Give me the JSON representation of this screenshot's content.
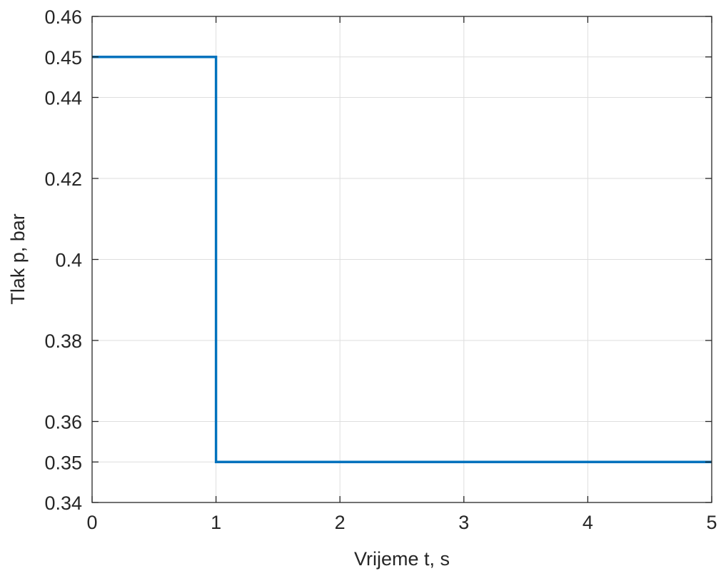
{
  "chart_data": {
    "type": "line",
    "step": true,
    "xlabel": "Vrijeme t, s",
    "ylabel": "Tlak p, bar",
    "xlim": [
      0,
      5
    ],
    "ylim": [
      0.34,
      0.46
    ],
    "grid": true,
    "xticks": [
      0,
      1,
      2,
      3,
      4,
      5
    ],
    "xtick_labels": [
      "0",
      "1",
      "2",
      "3",
      "4",
      "5"
    ],
    "yticks": [
      0.34,
      0.35,
      0.36,
      0.38,
      0.4,
      0.42,
      0.44,
      0.45,
      0.46
    ],
    "ytick_labels": [
      "0.34",
      "0.35",
      "0.36",
      "0.38",
      "0.4",
      "0.42",
      "0.44",
      "0.45",
      "0.46"
    ],
    "series": [
      {
        "color": "#0072BD",
        "x": [
          0,
          1,
          1,
          5
        ],
        "y": [
          0.45,
          0.45,
          0.35,
          0.35
        ]
      }
    ]
  }
}
